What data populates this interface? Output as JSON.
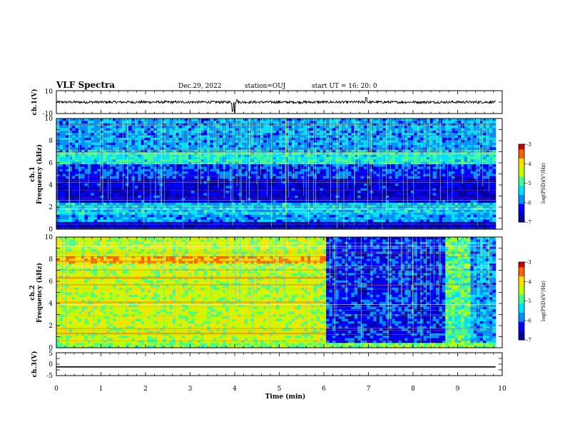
{
  "header": {
    "title": "VLF Spectra",
    "date": "Dec.29, 2022",
    "station": "station=OUJ",
    "start": "start UT =  16: 20: 0"
  },
  "chart_data": [
    {
      "type": "line",
      "name": "ch1-waveform",
      "ylabel": "ch.1(V)",
      "ylim": [
        -10,
        10
      ],
      "yticks": [
        "10",
        "-10"
      ],
      "baseline": 0,
      "spikes": [
        [
          3.95,
          -8
        ],
        [
          4.0,
          -9
        ],
        [
          6.95,
          4
        ],
        [
          4.05,
          2
        ]
      ]
    },
    {
      "type": "heatmap",
      "name": "ch1-spectrogram",
      "ylabel": "ch.1\nFrequency (kHz)",
      "ylim": [
        0,
        10
      ],
      "yticks": [
        "0",
        "2",
        "4",
        "6",
        "8",
        "10"
      ],
      "bands": [
        {
          "f0": 0.0,
          "f1": 0.7,
          "level": 0.1
        },
        {
          "f0": 0.7,
          "f1": 1.4,
          "level": 0.3
        },
        {
          "f0": 1.4,
          "f1": 2.4,
          "level": 0.35
        },
        {
          "f0": 2.4,
          "f1": 4.6,
          "level": 0.12
        },
        {
          "f0": 4.6,
          "f1": 5.9,
          "level": 0.2
        },
        {
          "f0": 5.9,
          "f1": 7.0,
          "level": 0.42
        },
        {
          "f0": 7.0,
          "f1": 10.0,
          "level": 0.3
        }
      ]
    },
    {
      "type": "heatmap",
      "name": "ch2-spectrogram",
      "ylabel": "ch.2\nFrequency (kHz)",
      "ylim": [
        0,
        10
      ],
      "yticks": [
        "0",
        "2",
        "4",
        "6",
        "8",
        "10"
      ],
      "segments": [
        {
          "t0": 0.0,
          "t1": 6.05,
          "level": 0.62
        },
        {
          "t0": 6.05,
          "t1": 8.7,
          "level": 0.18
        },
        {
          "t0": 8.7,
          "t1": 9.3,
          "level": 0.5
        },
        {
          "t0": 9.3,
          "t1": 9.85,
          "level": 0.3
        }
      ],
      "hot_bands": [
        7.8,
        6.3,
        4.1,
        1.3
      ]
    },
    {
      "type": "line",
      "name": "ch3-waveform",
      "ylabel": "ch.3(V)",
      "ylim": [
        -5,
        5
      ],
      "yticks": [
        "5",
        "0",
        "-5"
      ],
      "level": -1.2
    }
  ],
  "x_axis": {
    "xlabel": "Time (min)",
    "xlim": [
      0,
      10
    ],
    "ticks": [
      "0",
      "1",
      "2",
      "3",
      "4",
      "5",
      "6",
      "7",
      "8",
      "9",
      "10"
    ],
    "data_end": 9.85
  },
  "colorbar": {
    "label": "log(PSD)(V²/Hz)",
    "range": [
      -7,
      -3
    ],
    "ticks": [
      "-3",
      "-4",
      "-5",
      "-6",
      "-7"
    ],
    "colors": [
      "#0000a0",
      "#0000ff",
      "#0090ff",
      "#00e0ff",
      "#40ff90",
      "#c0ff00",
      "#ffe000",
      "#ff6000",
      "#d00000",
      "#ffffff"
    ]
  }
}
